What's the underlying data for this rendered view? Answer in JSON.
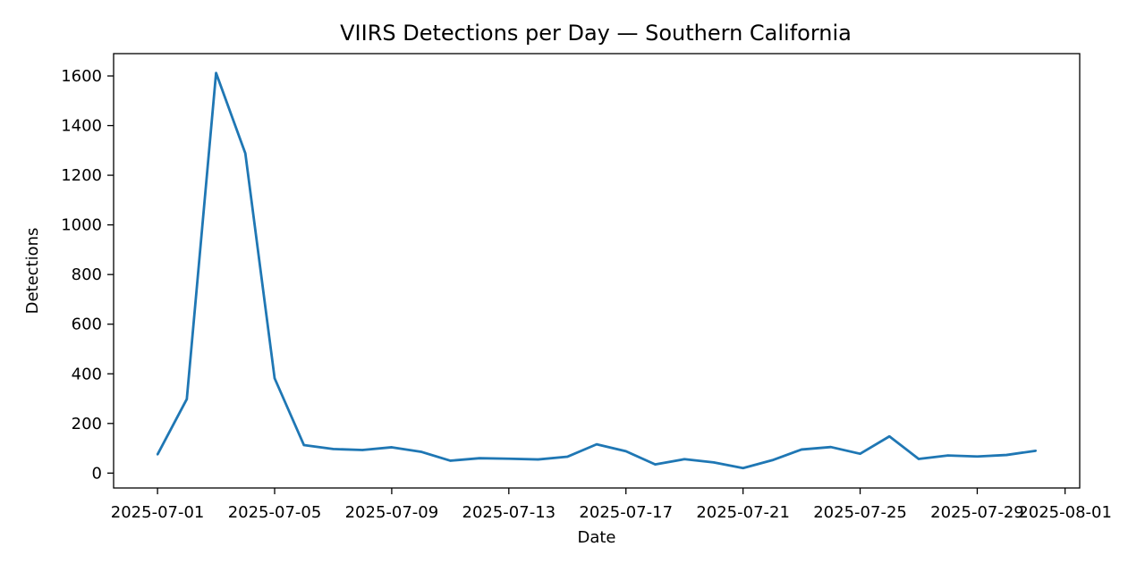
{
  "chart_data": {
    "type": "line",
    "title": "VIIRS Detections per Day — Southern California",
    "xlabel": "Date",
    "ylabel": "Detections",
    "x": [
      "2025-07-01",
      "2025-07-02",
      "2025-07-03",
      "2025-07-04",
      "2025-07-05",
      "2025-07-06",
      "2025-07-07",
      "2025-07-08",
      "2025-07-09",
      "2025-07-10",
      "2025-07-11",
      "2025-07-12",
      "2025-07-13",
      "2025-07-14",
      "2025-07-15",
      "2025-07-16",
      "2025-07-17",
      "2025-07-18",
      "2025-07-19",
      "2025-07-20",
      "2025-07-21",
      "2025-07-22",
      "2025-07-23",
      "2025-07-24",
      "2025-07-25",
      "2025-07-26",
      "2025-07-27",
      "2025-07-28",
      "2025-07-29",
      "2025-07-30",
      "2025-07-31"
    ],
    "series": [
      {
        "values": [
          75,
          298,
          1612,
          1288,
          382,
          113,
          97,
          93,
          104,
          86,
          50,
          60,
          58,
          55,
          66,
          116,
          88,
          35,
          56,
          43,
          20,
          52,
          95,
          105,
          78,
          148,
          57,
          71,
          67,
          73,
          90
        ],
        "color": "#1f77b4"
      }
    ],
    "xticks": [
      "2025-07-01",
      "2025-07-05",
      "2025-07-09",
      "2025-07-13",
      "2025-07-17",
      "2025-07-21",
      "2025-07-25",
      "2025-07-29",
      "2025-08-01"
    ],
    "yticks": [
      0,
      200,
      400,
      600,
      800,
      1000,
      1200,
      1400,
      1600
    ],
    "xlim": [
      "2025-06-29.5",
      "2025-08-01.5"
    ],
    "ylim": [
      -60,
      1690
    ],
    "grid": false,
    "legend": "none"
  }
}
